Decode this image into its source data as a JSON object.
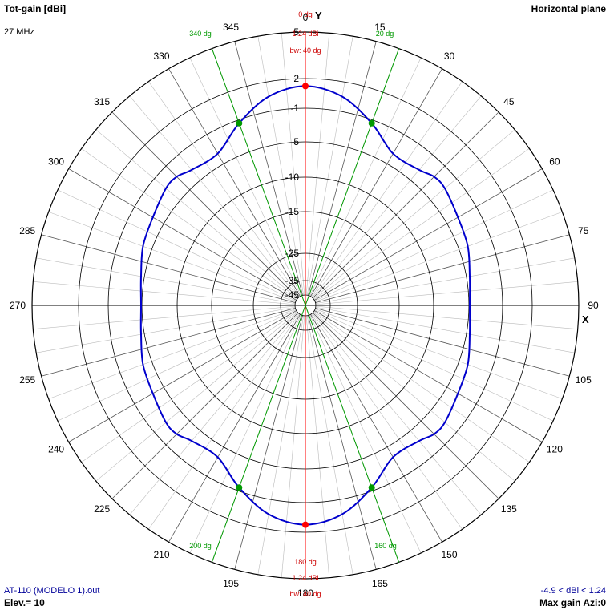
{
  "header": {
    "title": "Tot-gain [dBi]",
    "frequency": "27 MHz",
    "plane": "Horizontal plane"
  },
  "footer": {
    "file": "AT-110 (MODELO 1).out",
    "elevation": "Elev.= 10",
    "gain_range": "-4.9 < dBi < 1.24",
    "max_gain": "Max gain Azi:0"
  },
  "colors": {
    "pattern": "#0000cc",
    "max_marker": "#ff0000",
    "beamwidth": "#009900",
    "grid": "#000000",
    "spoke": "#333333"
  },
  "chart_data": {
    "type": "polar",
    "title": "Tot-gain [dBi]",
    "units": "dBi",
    "plane": "Horizontal plane",
    "angle_labels": [
      "0",
      "15",
      "30",
      "45",
      "60",
      "75",
      "90",
      "105",
      "120",
      "135",
      "150",
      "165",
      "180",
      "195",
      "210",
      "225",
      "240",
      "255",
      "270",
      "285",
      "300",
      "315",
      "330",
      "345"
    ],
    "axis_labels": {
      "y": "Y",
      "x": "X"
    },
    "ring_labels": [
      "5",
      "2",
      "-1",
      "-5",
      "-10",
      "-15",
      "-25",
      "-35",
      "-45"
    ],
    "series": [
      {
        "azimuth_deg": [
          0,
          10,
          20,
          30,
          40,
          45,
          50,
          60,
          70,
          80,
          90,
          100,
          110,
          120,
          130,
          135,
          140,
          150,
          160,
          170,
          180,
          190,
          200,
          210,
          220,
          225,
          230,
          240,
          250,
          260,
          270,
          280,
          290,
          300,
          310,
          315,
          320,
          330,
          340,
          350,
          360
        ],
        "gain_dbi": [
          1.24,
          0.5,
          -1.4,
          -3.6,
          -3.4,
          -2.8,
          -2.8,
          -3.5,
          -3.9,
          -4.6,
          -4.9,
          -4.6,
          -3.9,
          -3.5,
          -2.8,
          -2.8,
          -3.4,
          -3.6,
          -1.4,
          0.5,
          1.24,
          0.5,
          -1.4,
          -3.6,
          -3.4,
          -2.8,
          -2.8,
          -3.5,
          -3.9,
          -4.6,
          -4.9,
          -4.6,
          -3.9,
          -3.5,
          -2.8,
          -2.8,
          -3.4,
          -3.6,
          -1.4,
          0.5,
          1.24
        ]
      }
    ],
    "max_markers": [
      {
        "azimuth_deg": 0,
        "gain_dbi": 1.24,
        "angle_label": "0 dg",
        "gain_label": "1.24 dBi",
        "bw_label": "bw: 40 dg"
      },
      {
        "azimuth_deg": 180,
        "gain_dbi": 1.24,
        "angle_label": "180 dg",
        "gain_label": "1.24 dBi",
        "bw_label": "bw: 40 dg"
      }
    ],
    "beamwidth_markers": [
      {
        "azimuth_deg": 340,
        "label": "340 dg"
      },
      {
        "azimuth_deg": 20,
        "label": "20 dg"
      },
      {
        "azimuth_deg": 160,
        "label": "160 dg"
      },
      {
        "azimuth_deg": 200,
        "label": "200 dg"
      }
    ]
  }
}
